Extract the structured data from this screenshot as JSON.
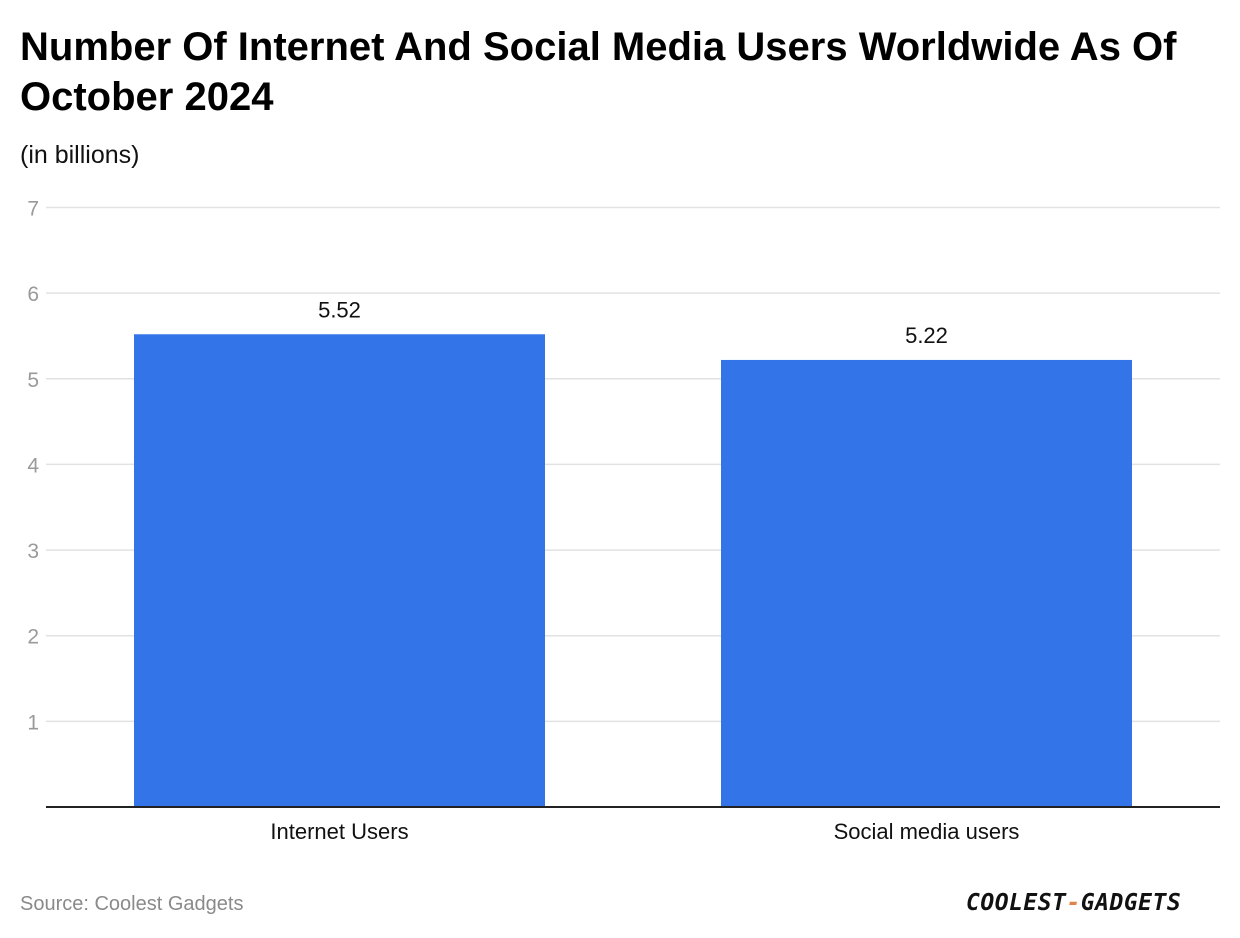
{
  "chart_data": {
    "type": "bar",
    "title": "Number Of Internet And Social Media Users Worldwide As Of October 2024",
    "subtitle": "(in billions)",
    "categories": [
      "Internet Users",
      "Social media users"
    ],
    "values": [
      5.52,
      5.22
    ],
    "value_labels": [
      "5.52",
      "5.22"
    ],
    "xlabel": "",
    "ylabel": "",
    "ylim": [
      0,
      7
    ],
    "yticks": [
      1,
      2,
      3,
      4,
      5,
      6,
      7
    ],
    "ytick_labels": [
      "1",
      "2",
      "3",
      "4",
      "5",
      "6",
      "7"
    ],
    "grid": true,
    "bar_color": "#3375e8",
    "grid_color": "#e2e2e2"
  },
  "source": "Source: Coolest Gadgets",
  "logo": {
    "part1": "COOLEST",
    "dash": "-",
    "part2": "GADGETS"
  }
}
